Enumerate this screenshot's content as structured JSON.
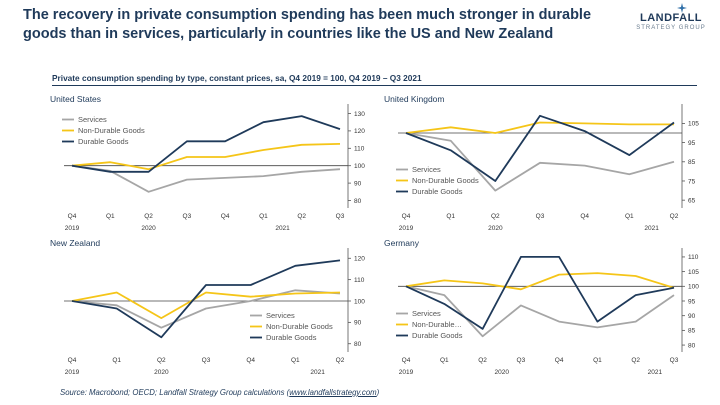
{
  "header": {
    "headline": "The recovery in private consumption spending has been much stronger in durable goods than in services, particularly in countries like the US and New Zealand",
    "logo_main": "LANDFALL",
    "logo_sub": "STRATEGY GROUP",
    "subtitle": "Private consumption spending by type, constant prices, sa, Q4 2019 = 100, Q4 2019 – Q3 2021"
  },
  "footer": {
    "source_prefix": "Source: Macrobond; OECD; Landfall Strategy Group calculations (",
    "source_link": "www.landfallstrategy.com",
    "source_suffix": ")"
  },
  "colors": {
    "services": "#a6a6a6",
    "non_durable": "#f5c518",
    "durable": "#1f3a5a",
    "axis": "#555555"
  },
  "chart_data": [
    {
      "type": "line",
      "title": "United States",
      "categories": [
        "Q4",
        "Q1",
        "Q2",
        "Q3",
        "Q4",
        "Q1",
        "Q2",
        "Q3"
      ],
      "year_labels": [
        {
          "index": 0,
          "label": "2019"
        },
        {
          "index": 2,
          "label": "2020"
        },
        {
          "index": 5.5,
          "label": "2021"
        }
      ],
      "y_ticks": [
        80,
        90,
        100,
        110,
        120,
        130
      ],
      "ylim": [
        78,
        132
      ],
      "baseline": 100,
      "legend_position": "top-left",
      "series": [
        {
          "name": "Services",
          "key": "services",
          "values": [
            100,
            97,
            85,
            92,
            93,
            94,
            96.5,
            98
          ]
        },
        {
          "name": "Non-Durable Goods",
          "key": "non_durable",
          "values": [
            100,
            102,
            98,
            105,
            105,
            109,
            112,
            112.5
          ]
        },
        {
          "name": "Durable Goods",
          "key": "durable",
          "values": [
            100,
            96.5,
            96.5,
            114,
            114,
            125,
            128.5,
            121
          ]
        }
      ]
    },
    {
      "type": "line",
      "title": "United Kingdom",
      "categories": [
        "Q4",
        "Q1",
        "Q2",
        "Q3",
        "Q4",
        "Q1",
        "Q2"
      ],
      "year_labels": [
        {
          "index": 0,
          "label": "2019"
        },
        {
          "index": 2,
          "label": "2020"
        },
        {
          "index": 5.5,
          "label": "2021"
        }
      ],
      "y_ticks": [
        65,
        75,
        85,
        95,
        105
      ],
      "ylim": [
        63,
        112
      ],
      "baseline": 100,
      "legend_position": "bottom-left",
      "series": [
        {
          "name": "Services",
          "key": "services",
          "values": [
            100,
            96,
            70,
            84.5,
            83,
            78.5,
            85
          ]
        },
        {
          "name": "Non-Durable Goods",
          "key": "non_durable",
          "values": [
            100,
            103,
            100,
            105.5,
            105,
            104.5,
            104.5
          ]
        },
        {
          "name": "Durable Goods",
          "key": "durable",
          "values": [
            100,
            91,
            75,
            109,
            101,
            88.5,
            105.5
          ]
        }
      ]
    },
    {
      "type": "line",
      "title": "New Zealand",
      "categories": [
        "Q4",
        "Q1",
        "Q2",
        "Q3",
        "Q4",
        "Q1",
        "Q2"
      ],
      "year_labels": [
        {
          "index": 0,
          "label": "2019"
        },
        {
          "index": 2,
          "label": "2020"
        },
        {
          "index": 5.5,
          "label": "2021"
        }
      ],
      "y_ticks": [
        80,
        90,
        100,
        110,
        120
      ],
      "ylim": [
        78,
        122
      ],
      "baseline": 100,
      "legend_position": "bottom-right",
      "series": [
        {
          "name": "Services",
          "key": "services",
          "values": [
            100,
            98,
            87.5,
            96.5,
            100,
            105,
            103.5
          ]
        },
        {
          "name": "Non-Durable Goods",
          "key": "non_durable",
          "values": [
            100,
            104,
            92,
            104,
            102,
            103.5,
            104
          ]
        },
        {
          "name": "Durable Goods",
          "key": "durable",
          "values": [
            100,
            96.5,
            83,
            107.5,
            107.5,
            116.5,
            119
          ]
        }
      ]
    },
    {
      "type": "line",
      "title": "Germany",
      "categories": [
        "Q4",
        "Q1",
        "Q2",
        "Q3",
        "Q4",
        "Q1",
        "Q2",
        "Q3"
      ],
      "year_labels": [
        {
          "index": 0,
          "label": "2019"
        },
        {
          "index": 2.5,
          "label": "2020"
        },
        {
          "index": 6.5,
          "label": "2021"
        }
      ],
      "y_ticks": [
        80,
        85,
        90,
        95,
        100,
        105,
        110
      ],
      "ylim": [
        79,
        111
      ],
      "baseline": 100,
      "legend_position": "bottom-left",
      "series": [
        {
          "name": "Services",
          "key": "services",
          "values": [
            100,
            97,
            83,
            93.5,
            88,
            86,
            88,
            97
          ]
        },
        {
          "name": "Non-Durable…",
          "key": "non_durable",
          "values": [
            100,
            102,
            101,
            99,
            104,
            104.5,
            103.5,
            99.5
          ]
        },
        {
          "name": "Durable Goods",
          "key": "durable",
          "values": [
            100,
            94,
            85.5,
            110,
            110,
            88,
            97,
            99.5
          ]
        }
      ]
    }
  ]
}
